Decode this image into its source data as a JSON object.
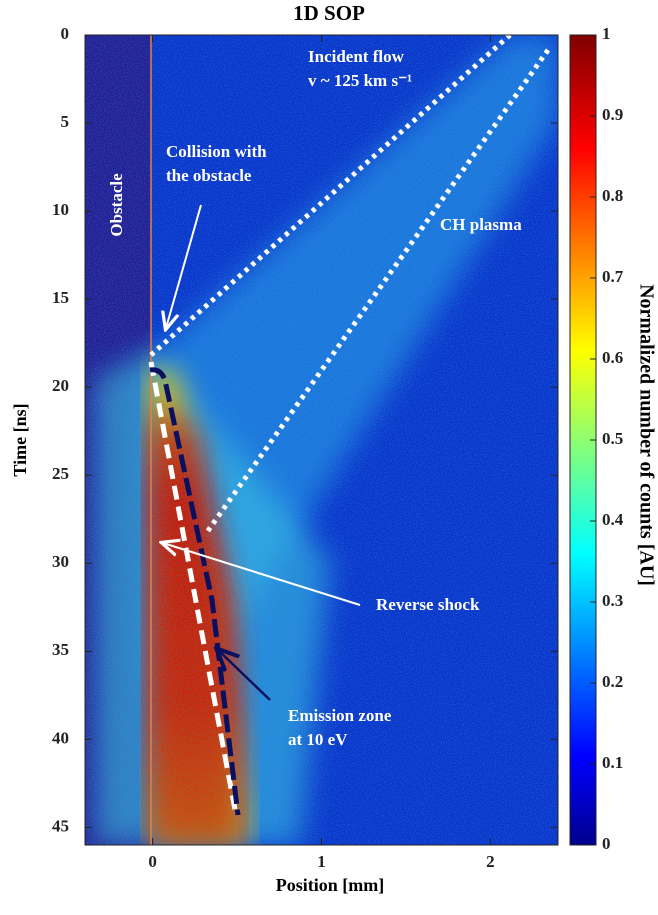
{
  "chart_data": {
    "type": "heatmap",
    "title": "1D SOP",
    "x_label": "Position [mm]",
    "y_label": "Time  [ns]",
    "colorbar_label": "Normalized number of counts [AU]",
    "xlim": [
      -0.4,
      2.4
    ],
    "xticks": [
      0,
      1,
      2
    ],
    "ylim": [
      0,
      46
    ],
    "yticks": [
      0,
      5,
      10,
      15,
      20,
      25,
      30,
      35,
      40,
      45
    ],
    "y_inverted": true,
    "clim": [
      0,
      1
    ],
    "cticks": [
      0,
      0.1,
      0.2,
      0.3,
      0.4,
      0.5,
      0.6,
      0.7,
      0.8,
      0.9,
      1
    ],
    "colormap": "jet",
    "annotations": [
      "Incident flow",
      "v ~ 125 km s⁻¹",
      "Obstacle",
      "Collision with",
      "the obstacle",
      "CH plasma",
      "Reverse shock",
      "Emission zone",
      "at 10 eV"
    ]
  }
}
